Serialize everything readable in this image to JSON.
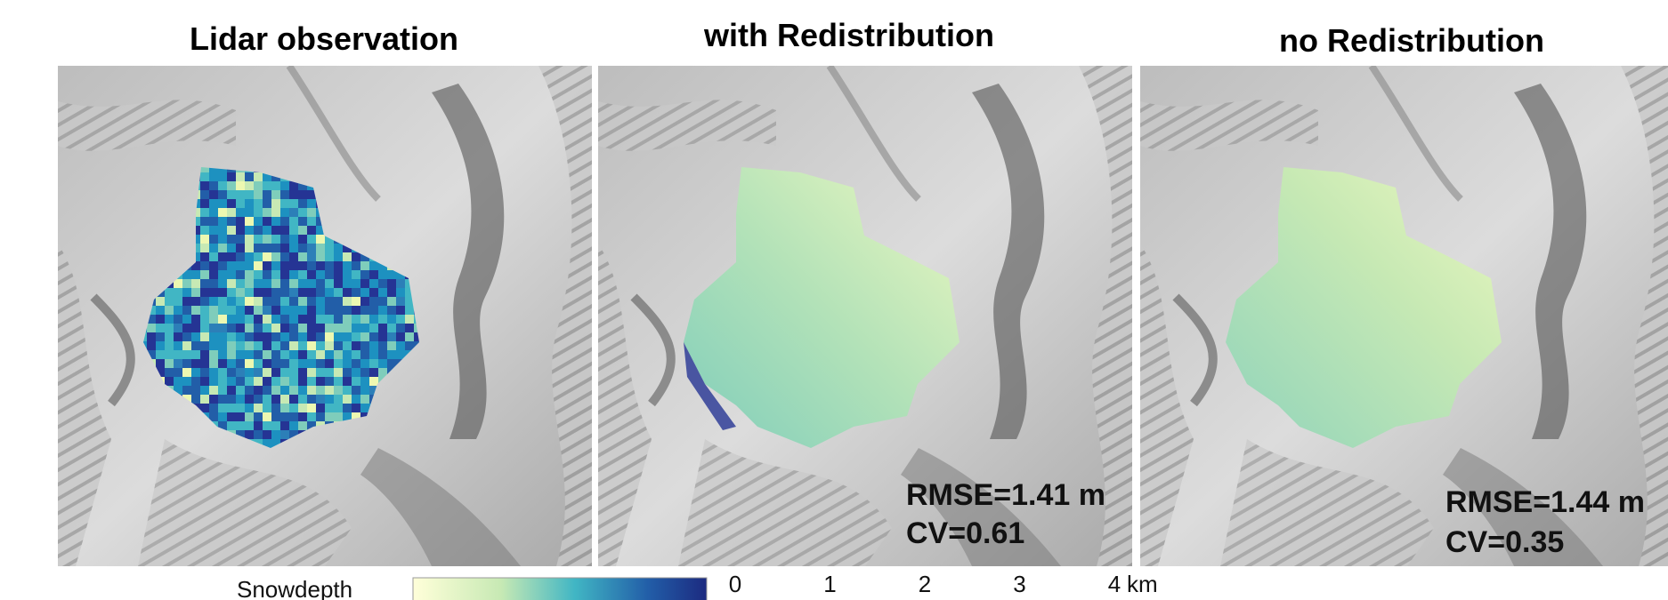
{
  "panels": [
    {
      "title": "Lidar observation"
    },
    {
      "title": "with Redistribution",
      "annotation": [
        "RMSE=1.41 m",
        "CV=0.61"
      ]
    },
    {
      "title": "no Redistribution",
      "annotation": [
        "RMSE=1.44 m",
        "CV=0.35"
      ]
    }
  ],
  "colorbar": {
    "label": "Snowdepth"
  },
  "scale_bar": {
    "ticks": [
      0,
      1,
      2,
      3,
      4
    ],
    "unit": "km"
  }
}
